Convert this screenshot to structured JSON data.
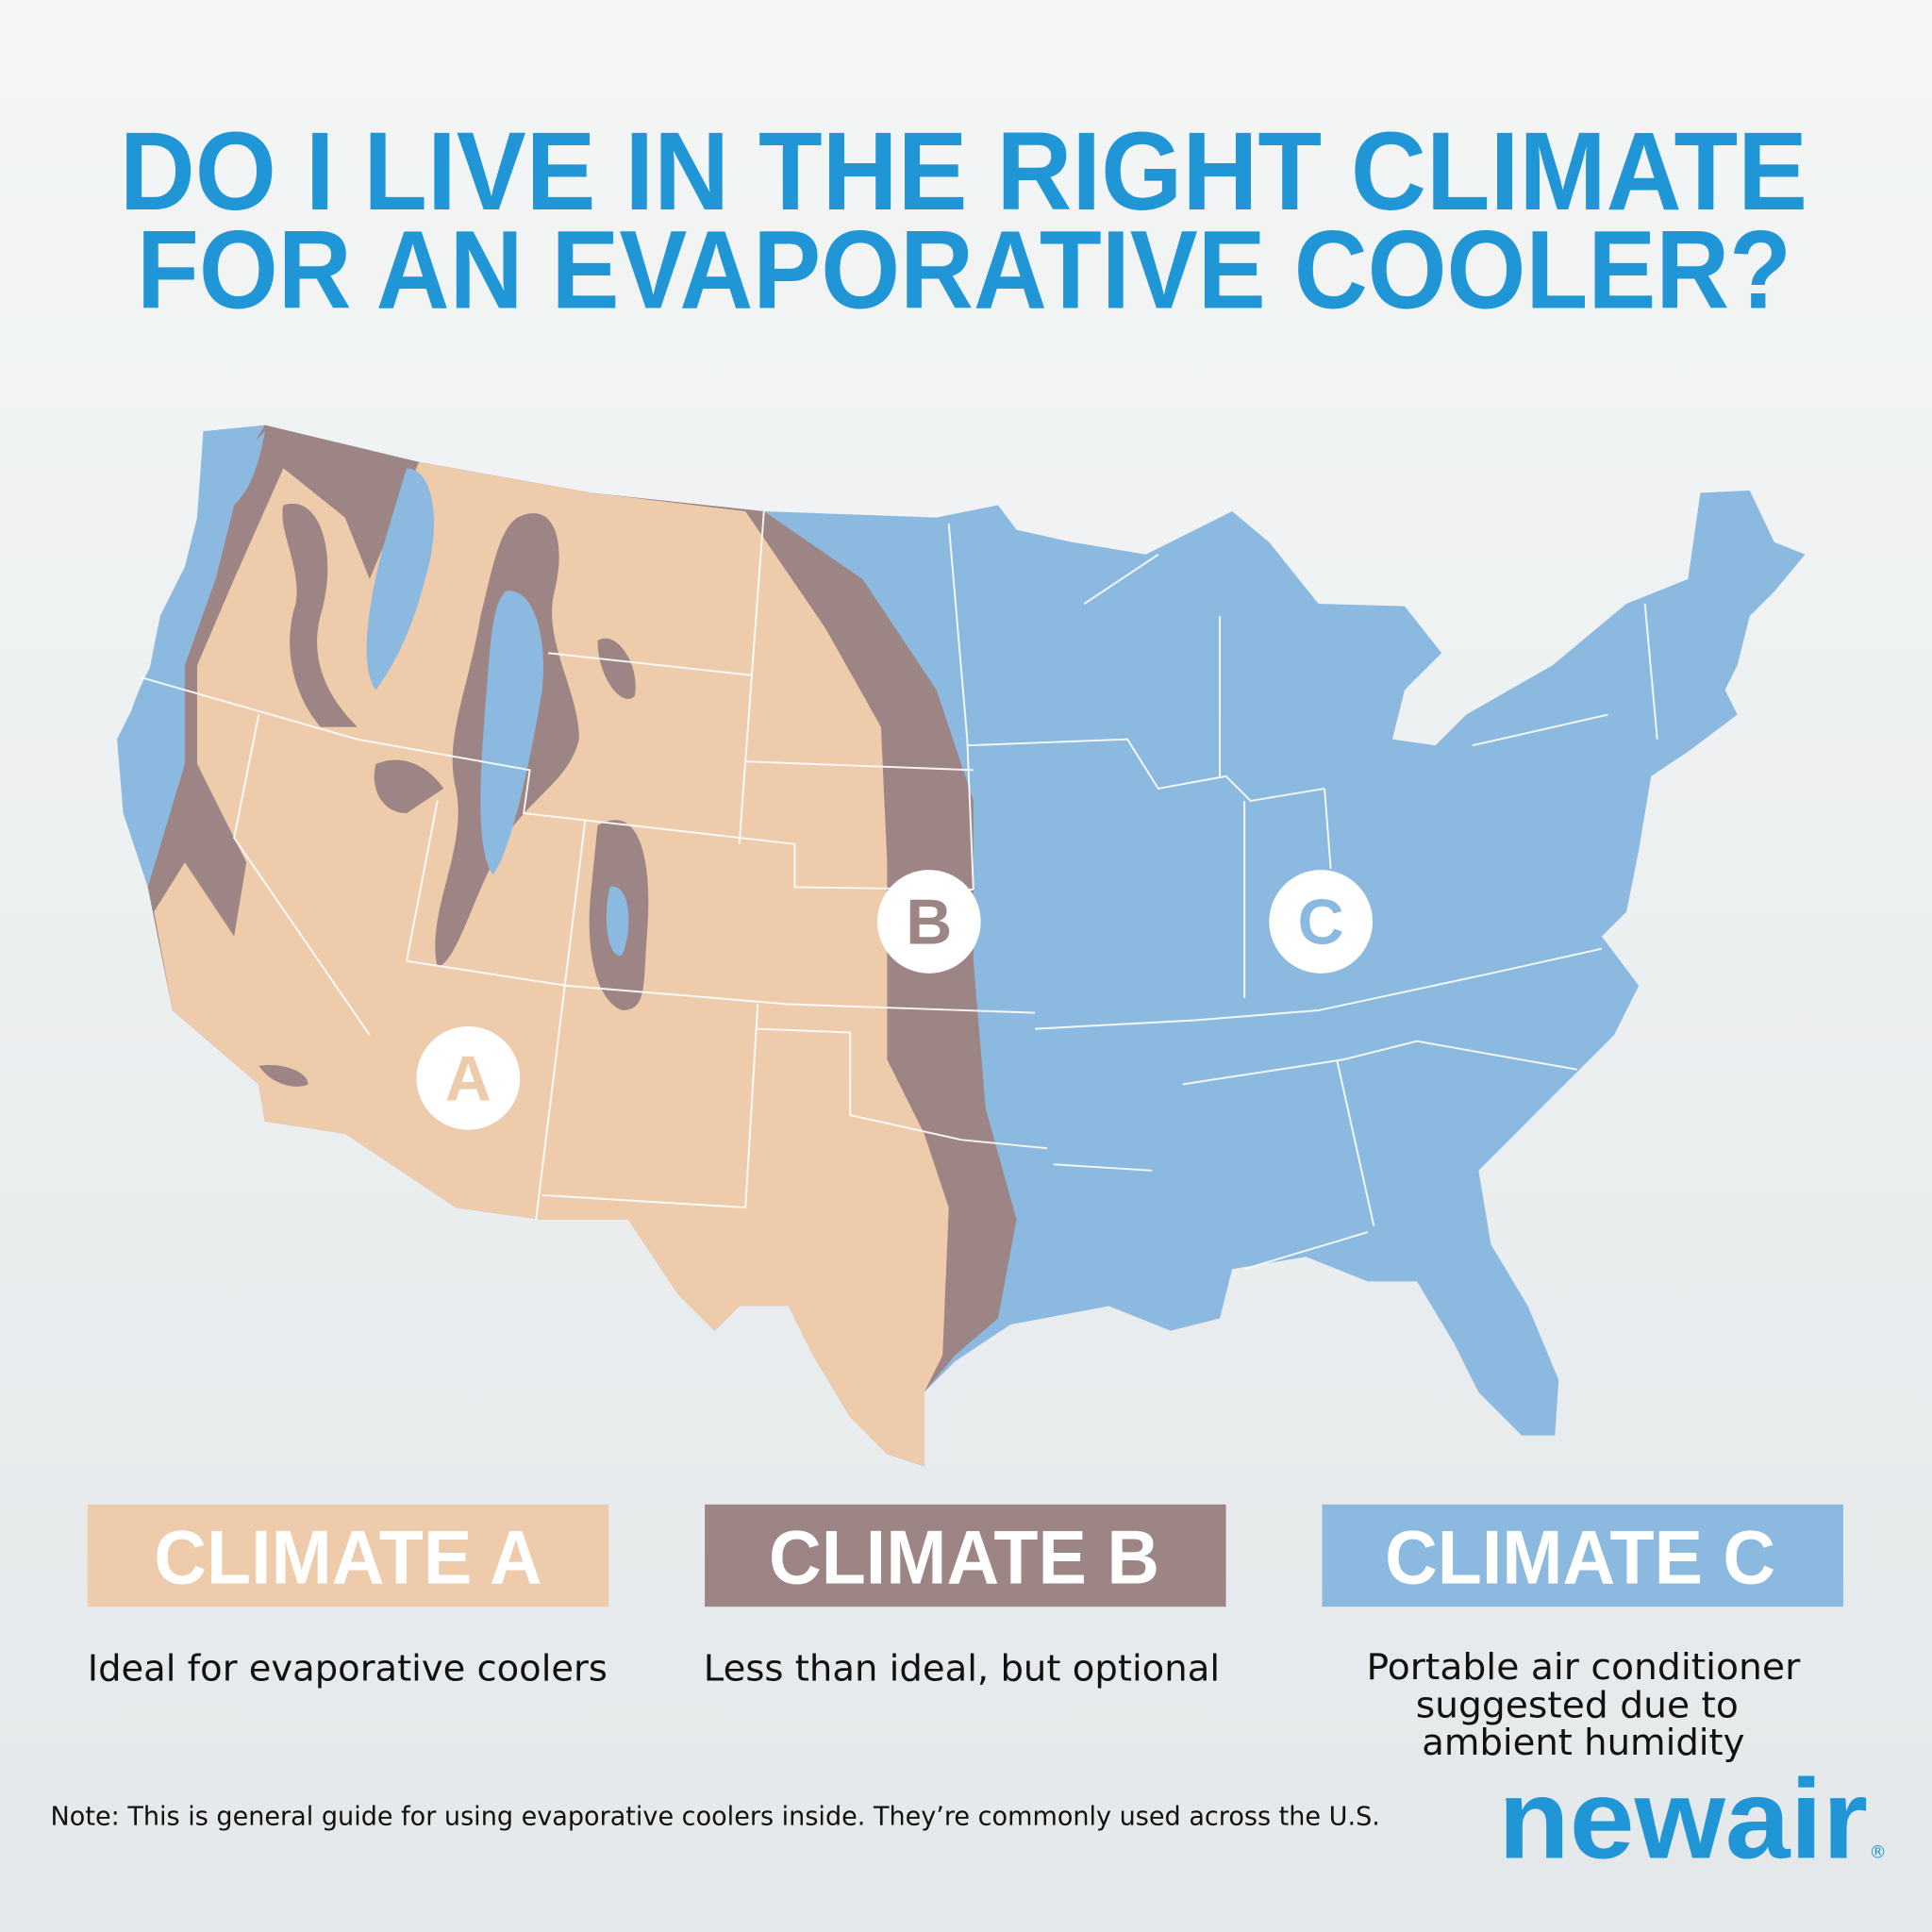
{
  "title": {
    "line1": "DO I LIVE IN THE RIGHT CLIMATE",
    "line2": "FOR AN EVAPORATIVE COOLER?",
    "color": "#2196d6"
  },
  "map": {
    "markers": [
      {
        "label": "A",
        "zone": "climate-a"
      },
      {
        "label": "B",
        "zone": "climate-b"
      },
      {
        "label": "C",
        "zone": "climate-c"
      }
    ],
    "colors": {
      "climate_a": "#edcbab",
      "climate_b": "#9e8585",
      "climate_c": "#8cb9df"
    }
  },
  "legend": [
    {
      "label": "CLIMATE A",
      "description": [
        "Ideal for evaporative coolers"
      ],
      "color": "#edcbab"
    },
    {
      "label": "CLIMATE B",
      "description": [
        "Less than ideal, but optional"
      ],
      "color": "#9e8585"
    },
    {
      "label": "CLIMATE C",
      "description": [
        "Portable air conditioner",
        "suggested  due to",
        "ambient humidity"
      ],
      "color": "#8cb9df"
    }
  ],
  "note": "Note: This is general guide for using evaporative coolers inside. They’re commonly used across the U.S.",
  "logo": {
    "text": "newair",
    "mark": "®",
    "color": "#2196d6"
  }
}
